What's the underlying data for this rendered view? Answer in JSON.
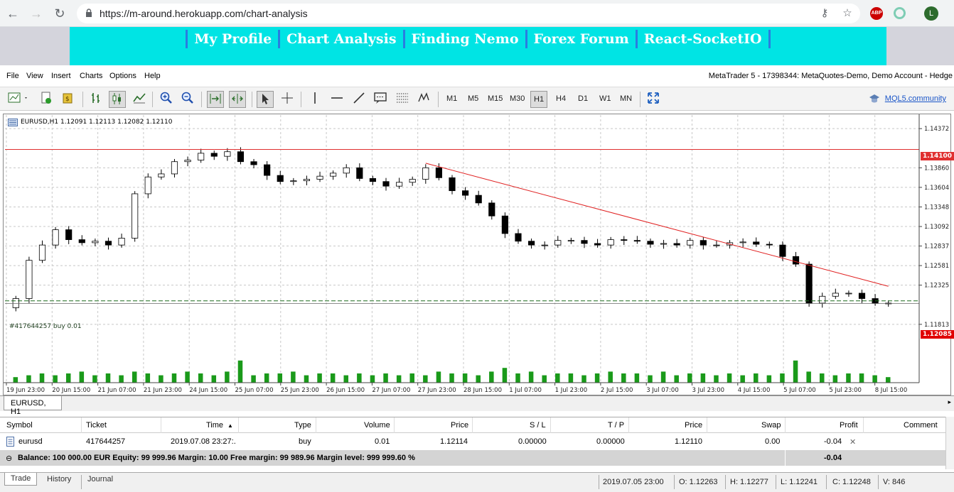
{
  "browser": {
    "url": "https://m-around.herokuapp.com/chart-analysis",
    "avatar_letter": "L",
    "abp_label": "ABP"
  },
  "site_nav": {
    "links": [
      "My Profile",
      "Chart Analysis",
      "Finding Nemo",
      "Forex Forum",
      "React-SocketIO"
    ]
  },
  "mt_menu": {
    "items": [
      "File",
      "View",
      "Insert",
      "Charts",
      "Options",
      "Help"
    ],
    "account_info": "MetaTrader 5 - 17398344: MetaQuotes-Demo, Demo Account - Hedge"
  },
  "toolbar": {
    "timeframes": [
      "M1",
      "M5",
      "M15",
      "M30",
      "H1",
      "H4",
      "D1",
      "W1",
      "MN"
    ],
    "active_timeframe": "H1",
    "mql5_label": "MQL5.community",
    "icons": [
      "new-chart-icon",
      "new-order-icon",
      "market-icon",
      "bar-chart-icon",
      "candlestick-icon",
      "line-chart-icon",
      "zoom-in-icon",
      "zoom-out-icon",
      "auto-scroll-icon",
      "chart-shift-icon",
      "cursor-icon",
      "crosshair-icon",
      "vertical-line-icon",
      "horizontal-line-icon",
      "trend-line-icon",
      "text-icon",
      "fibo-icon",
      "elliott-icon",
      "fullscreen-icon"
    ]
  },
  "chart": {
    "header": "EURUSD,H1  1.12091 1.12113 1.12082 1.12110",
    "order_label": "#417644257 buy 0.01",
    "resistance_price": "1.14100",
    "current_price": "1.12085",
    "colors": {
      "resistance": "#e03030",
      "trend": "#e02020",
      "price_tag": "#e00000",
      "order_line": "#1d6b1d",
      "volume": "#1a9a1a",
      "grid": "#c8c8c8"
    }
  },
  "chart_data": {
    "type": "candlestick",
    "symbol": "EURUSD",
    "timeframe": "H1",
    "ylim": [
      1.1105,
      1.1455
    ],
    "y_ticks": [
      "1.14372",
      "1.13860",
      "1.13604",
      "1.13348",
      "1.13092",
      "1.12837",
      "1.12581",
      "1.12325",
      "1.11813"
    ],
    "y_tick_values": [
      1.14372,
      1.1386,
      1.13604,
      1.13348,
      1.13092,
      1.12837,
      1.12581,
      1.12325,
      1.11813
    ],
    "x_ticks": [
      "19 Jun 23:00",
      "20 Jun 15:00",
      "21 Jun 07:00",
      "21 Jun 23:00",
      "24 Jun 15:00",
      "25 Jun 07:00",
      "25 Jun 23:00",
      "26 Jun 15:00",
      "27 Jun 07:00",
      "27 Jun 23:00",
      "28 Jun 15:00",
      "1 Jul 07:00",
      "1 Jul 23:00",
      "2 Jul 15:00",
      "3 Jul 07:00",
      "3 Jul 23:00",
      "4 Jul 15:00",
      "5 Jul 07:00",
      "5 Jul 23:00",
      "8 Jul 15:00"
    ],
    "resistance_level": 1.141,
    "order_level": 1.1212,
    "current_price": 1.12085,
    "trendline": {
      "from": {
        "index": 31.5,
        "price": 1.1392
      },
      "to": {
        "index": 66.5,
        "price": 1.1231
      }
    },
    "closes": [
      1.1215,
      1.1265,
      1.1285,
      1.1305,
      1.1292,
      1.1288,
      1.129,
      1.1285,
      1.1294,
      1.1352,
      1.1374,
      1.1378,
      1.1394,
      1.1396,
      1.1405,
      1.1401,
      1.1407,
      1.1394,
      1.139,
      1.1376,
      1.1368,
      1.1369,
      1.1371,
      1.1375,
      1.1379,
      1.1386,
      1.1372,
      1.1368,
      1.1362,
      1.1367,
      1.1371,
      1.1386,
      1.1373,
      1.1356,
      1.135,
      1.134,
      1.1323,
      1.13,
      1.129,
      1.1285,
      1.1285,
      1.1291,
      1.1291,
      1.1287,
      1.1285,
      1.1292,
      1.1291,
      1.129,
      1.1286,
      1.1287,
      1.1285,
      1.1291,
      1.1285,
      1.1285,
      1.1288,
      1.1289,
      1.1286,
      1.1285,
      1.127,
      1.126,
      1.1209,
      1.1218,
      1.1222,
      1.1222,
      1.1215,
      1.1209,
      1.1209
    ],
    "volumes": [
      3,
      4,
      5,
      4,
      5,
      6,
      4,
      5,
      4,
      6,
      5,
      4,
      5,
      6,
      5,
      4,
      6,
      12,
      4,
      5,
      5,
      6,
      4,
      5,
      5,
      4,
      5,
      4,
      5,
      4,
      5,
      4,
      6,
      5,
      5,
      4,
      6,
      8,
      5,
      6,
      4,
      5,
      5,
      4,
      5,
      6,
      5,
      5,
      4,
      6,
      4,
      5,
      5,
      4,
      5,
      4,
      5,
      4,
      5,
      12,
      6,
      5,
      4,
      5,
      5,
      4,
      3
    ]
  },
  "symbol_tab": "EURUSD, H1",
  "trade_table": {
    "headers": [
      "Symbol",
      "Ticket",
      "Time",
      "Type",
      "Volume",
      "Price",
      "S / L",
      "T / P",
      "Price",
      "Swap",
      "Profit",
      "Comment"
    ],
    "sort_arrow": "▲",
    "row": {
      "symbol": "eurusd",
      "ticket": "417644257",
      "time": "2019.07.08 23:27:.",
      "type": "buy",
      "volume": "0.01",
      "price": "1.12114",
      "sl": "0.00000",
      "tp": "0.00000",
      "cur_price": "1.12110",
      "swap": "0.00",
      "profit": "-0.04"
    },
    "balance_line": "Balance: 100 000.00 EUR  Equity: 99 999.96  Margin: 10.00  Free margin: 99 989.96  Margin level: 999 999.60 %",
    "balance_profit": "-0.04"
  },
  "term_tabs": [
    "Trade",
    "History",
    "Journal"
  ],
  "status_bar": {
    "time": "2019.07.05 23:00",
    "open": "O: 1.12263",
    "high": "H: 1.12277",
    "low": "L: 1.12241",
    "close": "C: 1.12248",
    "volume": "V: 846"
  }
}
